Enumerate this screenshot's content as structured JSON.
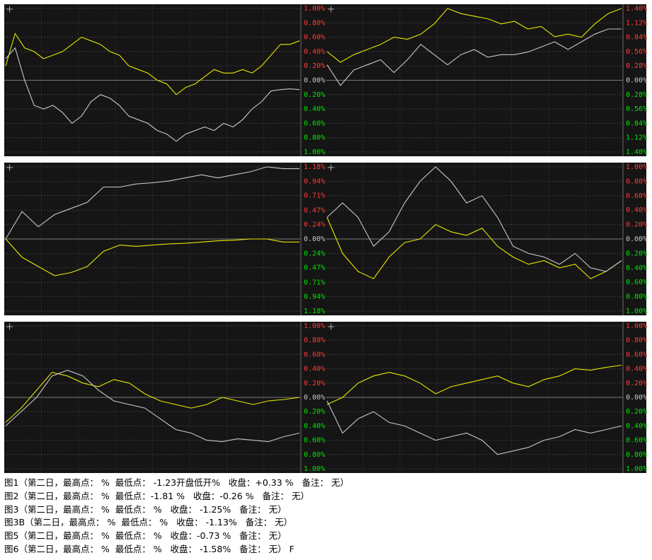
{
  "chart_data": [
    {
      "type": "line",
      "grid": true,
      "ylim": [
        -1,
        1
      ],
      "yticks": [
        {
          "value": 1,
          "label": "1.00%"
        },
        {
          "value": 0.8,
          "label": "0.80%"
        },
        {
          "value": 0.6,
          "label": "0.60%"
        },
        {
          "value": 0.4,
          "label": "0.40%"
        },
        {
          "value": 0.2,
          "label": "0.20%"
        },
        {
          "value": 0,
          "label": "0.00%"
        },
        {
          "value": -0.2,
          "label": "0.20%"
        },
        {
          "value": -0.4,
          "label": "0.40%"
        },
        {
          "value": -0.6,
          "label": "0.60%"
        },
        {
          "value": -0.8,
          "label": "0.80%"
        },
        {
          "value": -1,
          "label": "1.00%"
        }
      ],
      "series": [
        {
          "color": "#e6e600",
          "values": [
            0.2,
            0.65,
            0.45,
            0.4,
            0.3,
            0.35,
            0.4,
            0.5,
            0.6,
            0.55,
            0.5,
            0.4,
            0.35,
            0.2,
            0.15,
            0.1,
            0.0,
            -0.05,
            -0.2,
            -0.1,
            -0.05,
            0.05,
            0.15,
            0.1,
            0.1,
            0.15,
            0.1,
            0.2,
            0.35,
            0.5,
            0.5,
            0.55
          ]
        },
        {
          "color": "#c8c8c8",
          "values": [
            0.3,
            0.45,
            0.0,
            -0.35,
            -0.4,
            -0.35,
            -0.45,
            -0.6,
            -0.5,
            -0.3,
            -0.2,
            -0.25,
            -0.35,
            -0.5,
            -0.55,
            -0.6,
            -0.7,
            -0.75,
            -0.85,
            -0.75,
            -0.7,
            -0.65,
            -0.7,
            -0.6,
            -0.65,
            -0.55,
            -0.4,
            -0.3,
            -0.15,
            -0.13,
            -0.12,
            -0.13
          ]
        }
      ]
    },
    {
      "type": "line",
      "grid": true,
      "ylim": [
        -1.4,
        1.4
      ],
      "yticks": [
        {
          "value": 1.4,
          "label": "1.40%"
        },
        {
          "value": 1.12,
          "label": "1.12%"
        },
        {
          "value": 0.84,
          "label": "0.84%"
        },
        {
          "value": 0.56,
          "label": "0.56%"
        },
        {
          "value": 0.28,
          "label": "0.28%"
        },
        {
          "value": 0,
          "label": "0.00%"
        },
        {
          "value": -0.28,
          "label": "0.28%"
        },
        {
          "value": -0.56,
          "label": "0.56%"
        },
        {
          "value": -0.84,
          "label": "0.84%"
        },
        {
          "value": -1.12,
          "label": "1.12%"
        },
        {
          "value": -1.4,
          "label": "1.40%"
        }
      ],
      "series": [
        {
          "color": "#e6e600",
          "values": [
            0.56,
            0.35,
            0.5,
            0.6,
            0.7,
            0.84,
            0.8,
            0.9,
            1.1,
            1.4,
            1.3,
            1.25,
            1.2,
            1.1,
            1.15,
            1.0,
            1.05,
            0.85,
            0.9,
            0.84,
            1.1,
            1.3,
            1.4
          ]
        },
        {
          "color": "#c8c8c8",
          "values": [
            0.3,
            -0.1,
            0.2,
            0.3,
            0.4,
            0.15,
            0.4,
            0.7,
            0.5,
            0.3,
            0.5,
            0.6,
            0.45,
            0.5,
            0.5,
            0.55,
            0.65,
            0.75,
            0.6,
            0.75,
            0.9,
            1.0,
            1.0
          ]
        }
      ]
    },
    {
      "type": "line",
      "grid": true,
      "ylim": [
        -1.18,
        1.18
      ],
      "yticks": [
        {
          "value": 1.18,
          "label": "1.18%"
        },
        {
          "value": 0.94,
          "label": "0.94%"
        },
        {
          "value": 0.71,
          "label": "0.71%"
        },
        {
          "value": 0.47,
          "label": "0.47%"
        },
        {
          "value": 0.24,
          "label": "0.24%"
        },
        {
          "value": 0,
          "label": "0.00%"
        },
        {
          "value": -0.24,
          "label": "0.24%"
        },
        {
          "value": -0.47,
          "label": "0.47%"
        },
        {
          "value": -0.71,
          "label": "0.71%"
        },
        {
          "value": -0.94,
          "label": "0.94%"
        },
        {
          "value": -1.18,
          "label": "1.18%"
        }
      ],
      "series": [
        {
          "color": "#e6e600",
          "values": [
            0.0,
            -0.3,
            -0.45,
            -0.6,
            -0.55,
            -0.45,
            -0.2,
            -0.1,
            -0.12,
            -0.1,
            -0.08,
            -0.07,
            -0.05,
            -0.03,
            -0.02,
            0.0,
            0.0,
            -0.05,
            -0.05
          ]
        },
        {
          "color": "#c8c8c8",
          "values": [
            0.0,
            0.45,
            0.2,
            0.4,
            0.5,
            0.6,
            0.85,
            0.85,
            0.9,
            0.92,
            0.95,
            1.0,
            1.05,
            1.0,
            1.05,
            1.1,
            1.18,
            1.15,
            1.15
          ]
        }
      ]
    },
    {
      "type": "line",
      "grid": true,
      "ylim": [
        -1,
        1
      ],
      "yticks": [
        {
          "value": 1,
          "label": "1.00%"
        },
        {
          "value": 0.8,
          "label": "0.80%"
        },
        {
          "value": 0.6,
          "label": "0.60%"
        },
        {
          "value": 0.4,
          "label": "0.40%"
        },
        {
          "value": 0.2,
          "label": "0.20%"
        },
        {
          "value": 0,
          "label": "0.00%"
        },
        {
          "value": -0.2,
          "label": "0.20%"
        },
        {
          "value": -0.4,
          "label": "0.40%"
        },
        {
          "value": -0.6,
          "label": "0.60%"
        },
        {
          "value": -0.8,
          "label": "0.80%"
        },
        {
          "value": -1,
          "label": "1.00%"
        }
      ],
      "series": [
        {
          "color": "#e6e600",
          "values": [
            0.3,
            -0.2,
            -0.45,
            -0.55,
            -0.25,
            -0.05,
            0.0,
            0.2,
            0.1,
            0.05,
            0.15,
            -0.1,
            -0.25,
            -0.35,
            -0.3,
            -0.4,
            -0.35,
            -0.55,
            -0.45,
            -0.3
          ]
        },
        {
          "color": "#c8c8c8",
          "values": [
            0.3,
            0.5,
            0.3,
            -0.1,
            0.1,
            0.5,
            0.8,
            1.0,
            0.8,
            0.5,
            0.6,
            0.3,
            -0.1,
            -0.2,
            -0.25,
            -0.35,
            -0.2,
            -0.4,
            -0.45,
            -0.3
          ]
        }
      ]
    },
    {
      "type": "line",
      "grid": true,
      "ylim": [
        -1,
        1
      ],
      "yticks": [
        {
          "value": 1,
          "label": "1.00%"
        },
        {
          "value": 0.8,
          "label": "0.80%"
        },
        {
          "value": 0.6,
          "label": "0.60%"
        },
        {
          "value": 0.4,
          "label": "0.40%"
        },
        {
          "value": 0.2,
          "label": "0.20%"
        },
        {
          "value": 0,
          "label": "0.00%"
        },
        {
          "value": -0.2,
          "label": "0.20%"
        },
        {
          "value": -0.4,
          "label": "0.40%"
        },
        {
          "value": -0.6,
          "label": "0.60%"
        },
        {
          "value": -0.8,
          "label": "0.80%"
        },
        {
          "value": -1,
          "label": "1.00%"
        }
      ],
      "series": [
        {
          "color": "#e6e600",
          "values": [
            -0.35,
            -0.15,
            0.1,
            0.35,
            0.3,
            0.2,
            0.15,
            0.25,
            0.2,
            0.05,
            -0.05,
            -0.1,
            -0.15,
            -0.1,
            0.0,
            -0.05,
            -0.1,
            -0.05,
            -0.03,
            0.0
          ]
        },
        {
          "color": "#c8c8c8",
          "values": [
            -0.4,
            -0.2,
            0.0,
            0.3,
            0.38,
            0.3,
            0.1,
            -0.05,
            -0.1,
            -0.15,
            -0.3,
            -0.45,
            -0.5,
            -0.6,
            -0.62,
            -0.58,
            -0.6,
            -0.62,
            -0.55,
            -0.5
          ]
        }
      ]
    },
    {
      "type": "line",
      "grid": true,
      "ylim": [
        -1,
        1
      ],
      "yticks": [
        {
          "value": 1,
          "label": "1.00%"
        },
        {
          "value": 0.8,
          "label": "0.80%"
        },
        {
          "value": 0.6,
          "label": "0.60%"
        },
        {
          "value": 0.4,
          "label": "0.40%"
        },
        {
          "value": 0.2,
          "label": "0.20%"
        },
        {
          "value": 0,
          "label": "0.00%"
        },
        {
          "value": -0.2,
          "label": "0.20%"
        },
        {
          "value": -0.4,
          "label": "0.40%"
        },
        {
          "value": -0.6,
          "label": "0.60%"
        },
        {
          "value": -0.8,
          "label": "0.80%"
        },
        {
          "value": -1,
          "label": "1.00%"
        }
      ],
      "series": [
        {
          "color": "#e6e600",
          "values": [
            -0.1,
            0.0,
            0.2,
            0.3,
            0.35,
            0.3,
            0.2,
            0.05,
            0.15,
            0.2,
            0.25,
            0.3,
            0.2,
            0.15,
            0.25,
            0.3,
            0.4,
            0.38,
            0.42,
            0.45
          ]
        },
        {
          "color": "#c8c8c8",
          "values": [
            -0.05,
            -0.5,
            -0.3,
            -0.2,
            -0.35,
            -0.4,
            -0.5,
            -0.6,
            -0.55,
            -0.5,
            -0.6,
            -0.8,
            -0.75,
            -0.7,
            -0.6,
            -0.55,
            -0.45,
            -0.5,
            -0.45,
            -0.4
          ]
        }
      ]
    }
  ],
  "captions": [
    "图1（第二日，最高点： %  最低点： -1.23开盘低开%   收盘：+0.33 %   备注： 无）",
    "图2（第二日，最高点： %  最低点：-1.81 %   收盘：-0.26 %   备注： 无）",
    "图3（第二日，最高点： %  最低点： %   收盘： -1.25%   备注： 无）",
    "图3B（第二日，最高点： %  最低点： %   收盘： -1.13%   备注： 无）",
    "图5（第二日，最高点： %  最低点： %   收盘：-0.73 %   备注： 无）",
    "图6（第二日，最高点： %  最低点： %   收盘： -1.58%   备注： 无） F"
  ]
}
